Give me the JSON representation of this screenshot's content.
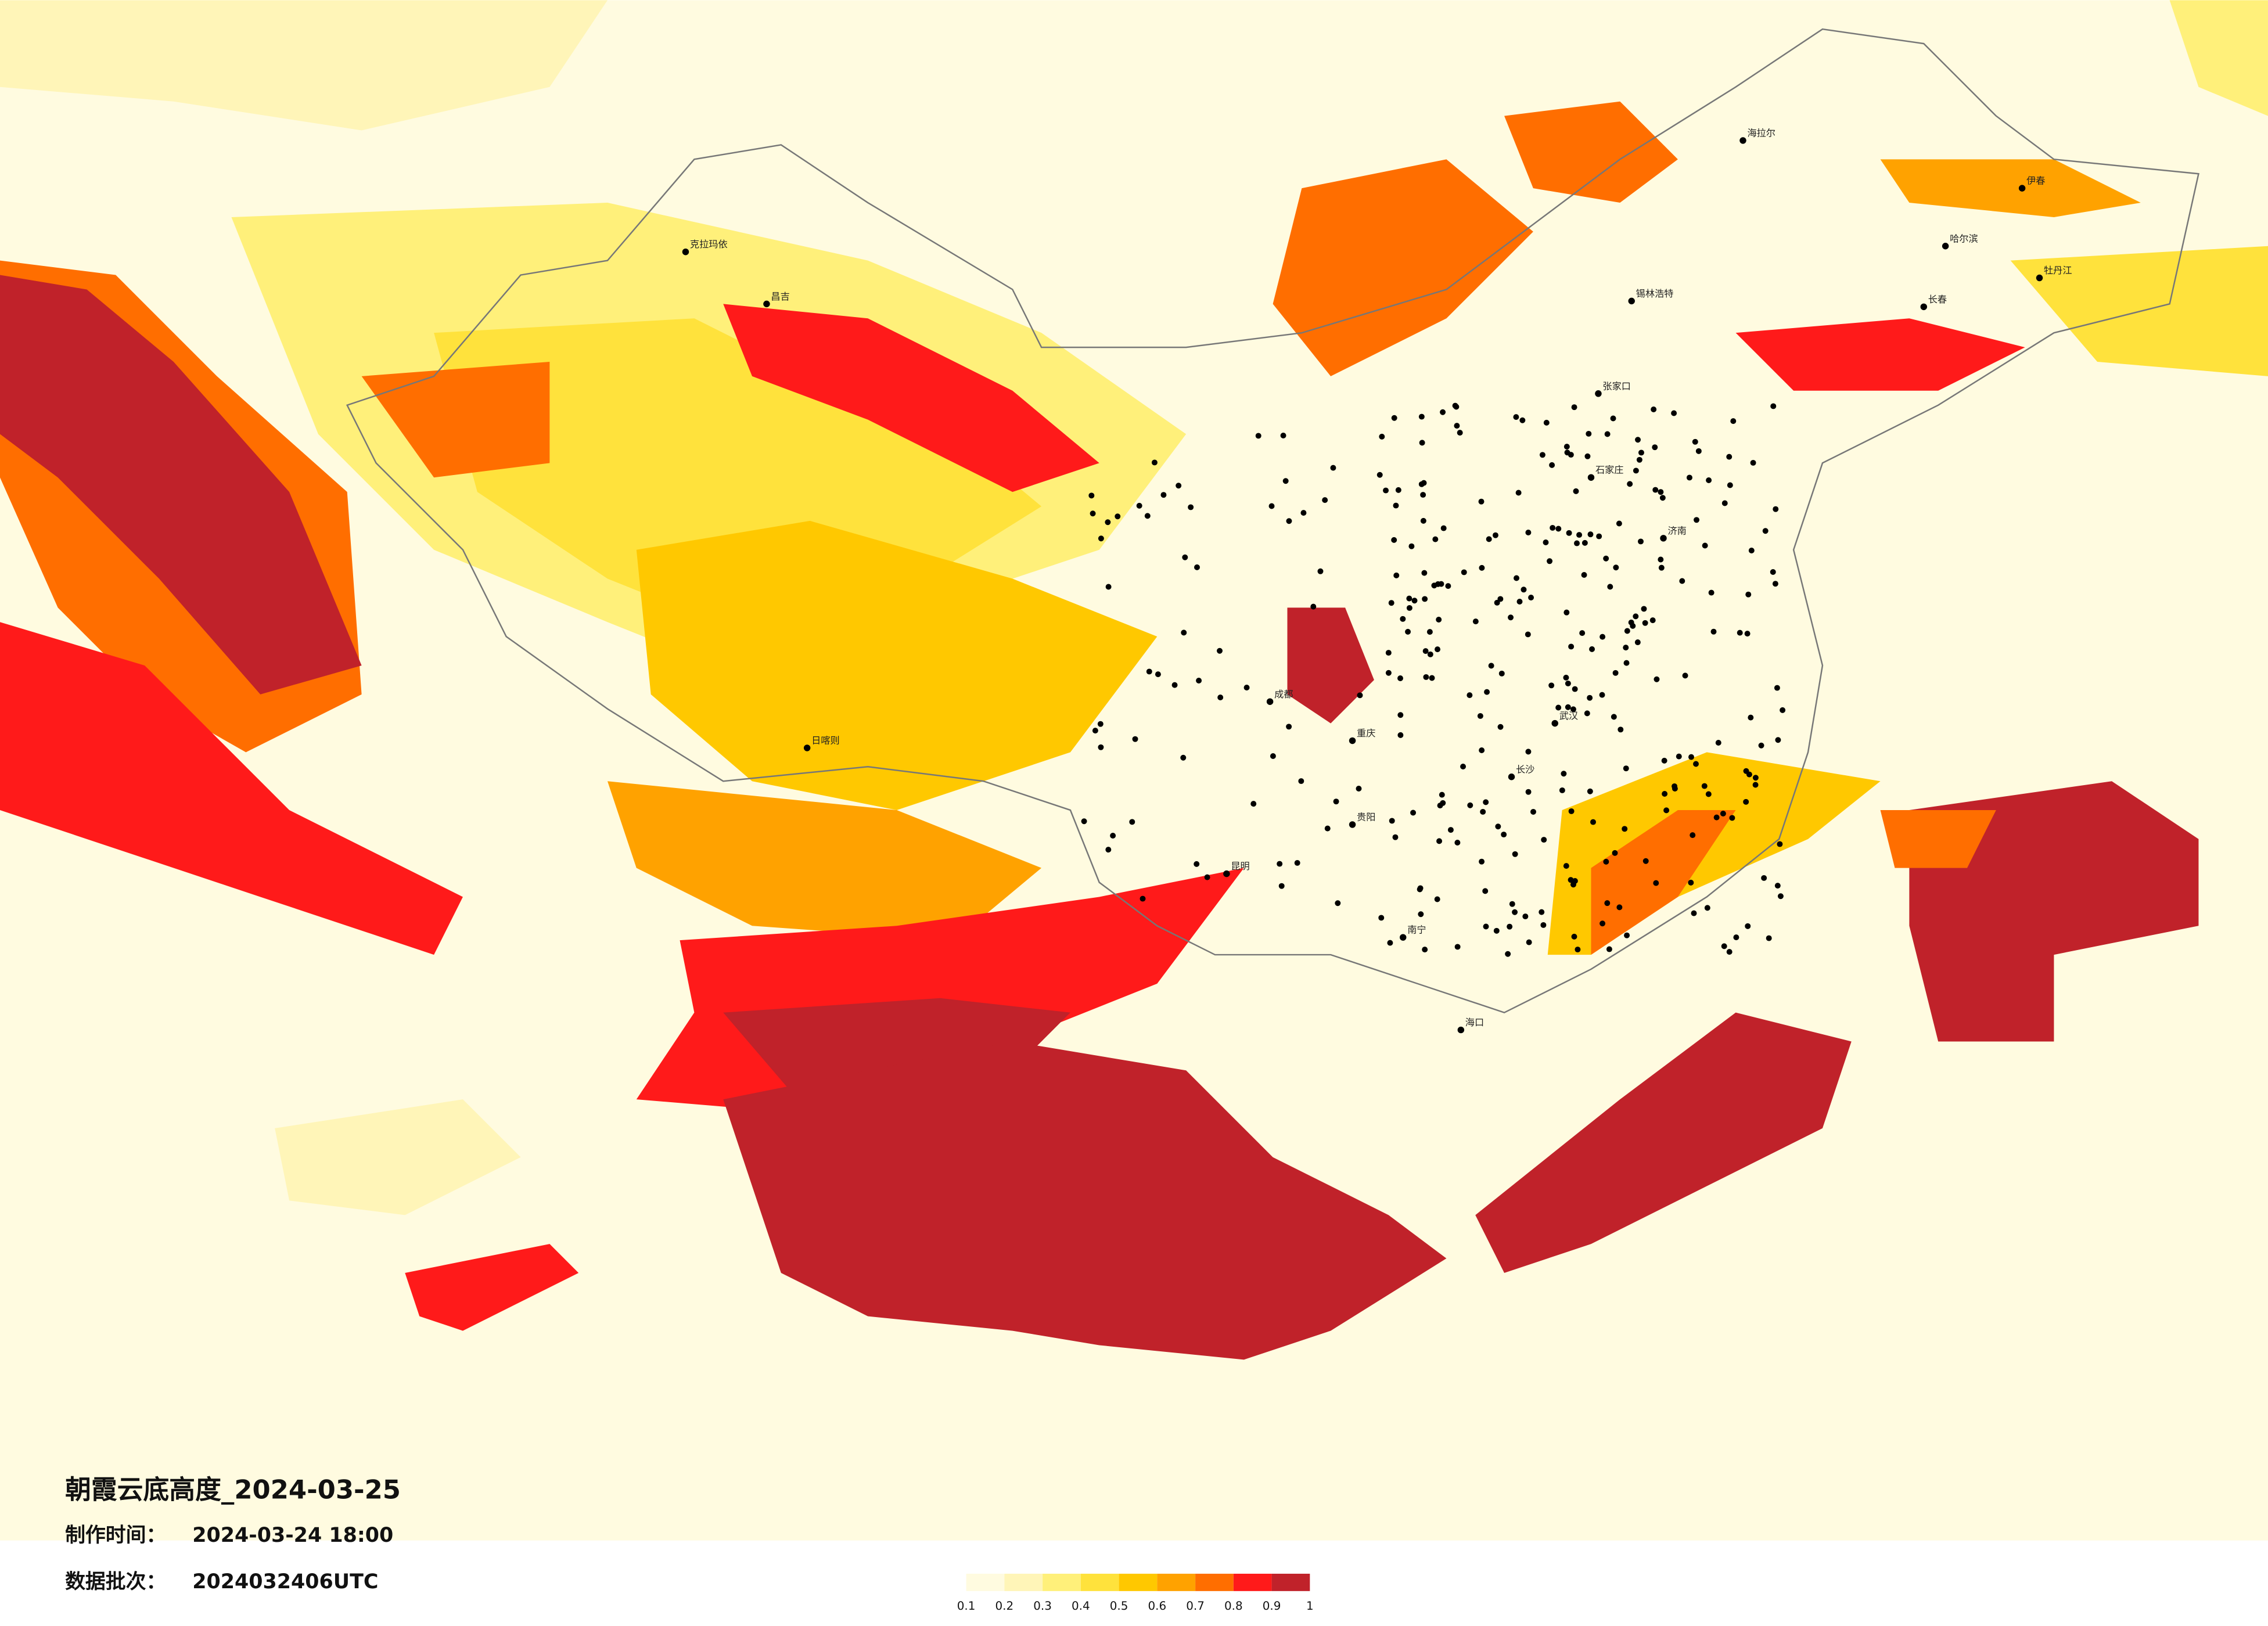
{
  "title": "朝霞云底高度_2024-03-25",
  "production_time": {
    "label": "制作时间：",
    "value": "2024-03-24 18:00"
  },
  "data_batch": {
    "label": "数据批次：",
    "value": "2024032406UTC"
  },
  "legend": {
    "ticks": [
      0.1,
      0.2,
      0.3,
      0.4,
      0.5,
      0.6,
      0.7,
      0.8,
      0.9,
      1
    ],
    "colors": [
      "#fffbe0",
      "#fff5b8",
      "#fff07a",
      "#ffe23c",
      "#ffc800",
      "#ffa200",
      "#ff6e00",
      "#ff1a1a",
      "#c0222a"
    ]
  },
  "cities": [
    "克拉玛依",
    "昌吉",
    "海拉尔",
    "伊春",
    "长春",
    "锡林浩特",
    "日喀则",
    "成都",
    "重庆",
    "昆明",
    "贵阳",
    "南宁",
    "长沙",
    "武汉",
    "济南",
    "石家庄",
    "张家口",
    "哈尔滨",
    "牡丹江",
    "海口"
  ]
}
